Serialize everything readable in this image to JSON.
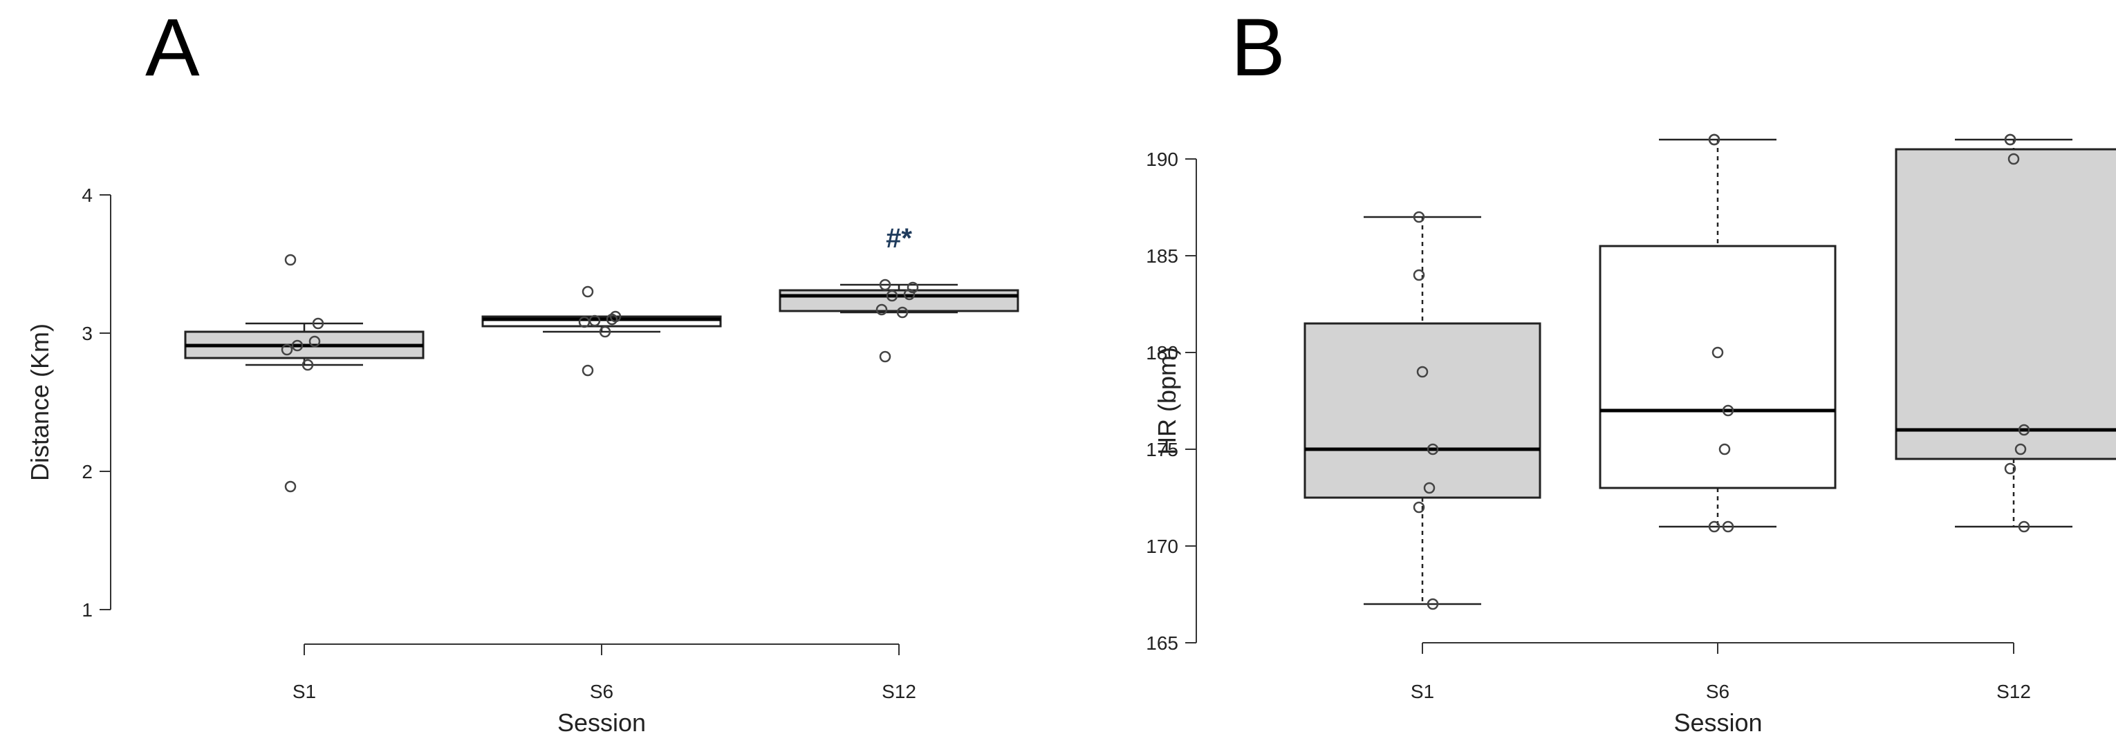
{
  "figure": {
    "panel_a_letter": "A",
    "panel_b_letter": "B"
  },
  "chart_data": [
    {
      "type": "box",
      "panel": "A",
      "xlabel": "Session",
      "ylabel": "Distance (Km)",
      "ylim": [
        1,
        4
      ],
      "y_ticks": [
        "1",
        "2",
        "3",
        "4"
      ],
      "categories": [
        "S1",
        "S6",
        "S12"
      ],
      "grid": false,
      "boxes": [
        {
          "category": "S1",
          "fill": "#d3d3d3",
          "q1": 2.82,
          "median": 2.91,
          "q3": 3.01,
          "whisker_low": 2.77,
          "whisker_high": 3.07,
          "whisker_style": "solid",
          "points": [
            3.53,
            3.07,
            2.94,
            2.91,
            2.88,
            2.77,
            1.89
          ]
        },
        {
          "category": "S6",
          "fill": "#ffffff",
          "q1": 3.05,
          "median": 3.1,
          "q3": 3.12,
          "whisker_low": 3.01,
          "whisker_high": 3.12,
          "whisker_style": "solid",
          "points": [
            3.3,
            3.12,
            3.1,
            3.09,
            3.08,
            3.01,
            2.73
          ]
        },
        {
          "category": "S12",
          "fill": "#d3d3d3",
          "q1": 3.16,
          "median": 3.27,
          "q3": 3.31,
          "whisker_low": 3.15,
          "whisker_high": 3.35,
          "whisker_style": "solid",
          "points": [
            3.35,
            3.33,
            3.28,
            3.27,
            3.17,
            3.15,
            2.83
          ]
        }
      ],
      "annotations": [
        {
          "category": "S12",
          "text": "#*",
          "y": 3.69,
          "color": "#1f3b5c"
        }
      ]
    },
    {
      "type": "box",
      "panel": "B",
      "xlabel": "Session",
      "ylabel": "HR (bpm)",
      "ylim": [
        165,
        190
      ],
      "y_ticks": [
        "165",
        "170",
        "175",
        "180",
        "185",
        "190"
      ],
      "categories": [
        "S1",
        "S6",
        "S12"
      ],
      "grid": false,
      "boxes": [
        {
          "category": "S1",
          "fill": "#d3d3d3",
          "q1": 172.5,
          "median": 175,
          "q3": 181.5,
          "whisker_low": 167,
          "whisker_high": 187,
          "whisker_style": "dashed",
          "points": [
            187,
            184,
            179,
            175,
            173,
            172,
            167
          ]
        },
        {
          "category": "S6",
          "fill": "#ffffff",
          "q1": 173,
          "median": 177,
          "q3": 185.5,
          "whisker_low": 171,
          "whisker_high": 191,
          "whisker_style": "dashed",
          "points": [
            191,
            191,
            180,
            177,
            175,
            171,
            171
          ]
        },
        {
          "category": "S12",
          "fill": "#d3d3d3",
          "q1": 174.5,
          "median": 176,
          "q3": 190.5,
          "whisker_low": 171,
          "whisker_high": 191,
          "whisker_style": "dashed",
          "points": [
            191,
            191,
            190,
            176,
            175,
            174,
            171
          ]
        }
      ],
      "annotations": []
    }
  ]
}
